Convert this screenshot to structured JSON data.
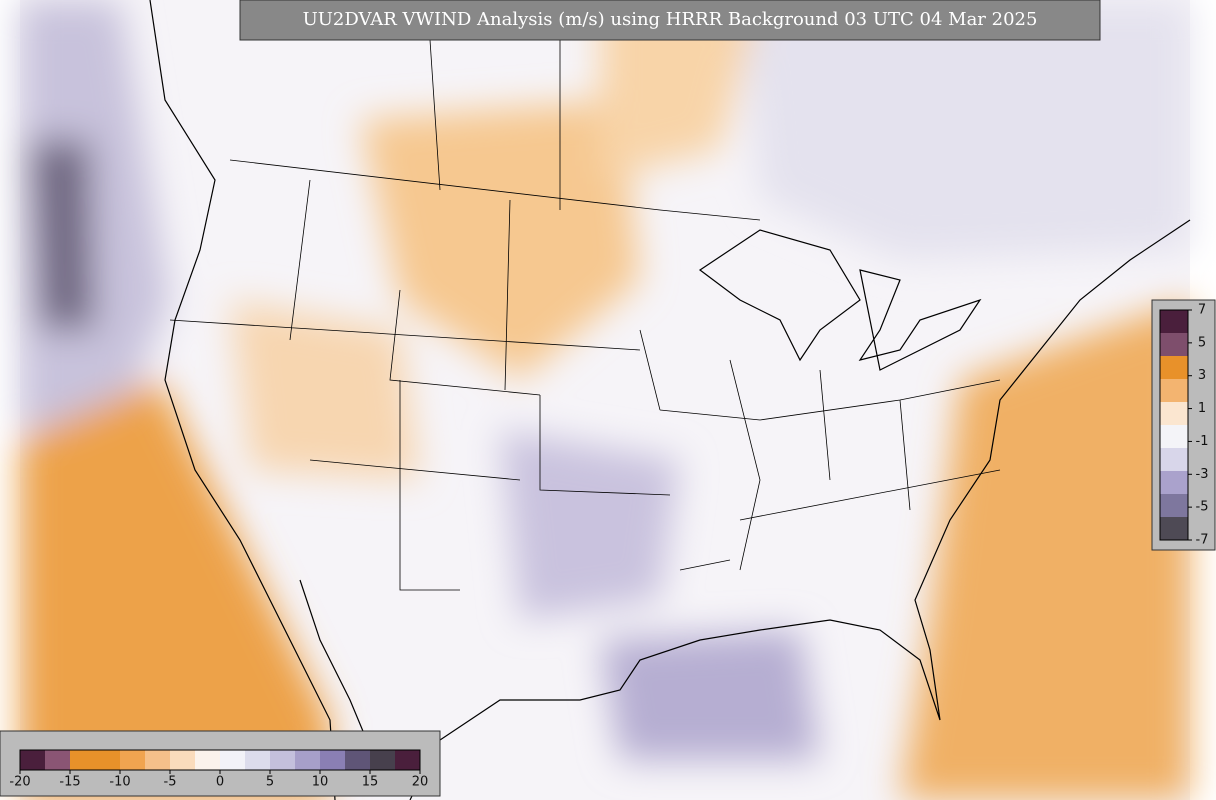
{
  "title": "UU2DVAR VWIND Analysis (m/s) using HRRR Background 03 UTC 04 Mar 2025",
  "colorbars": [
    {
      "orientation": "horizontal",
      "range": [
        -20,
        20
      ],
      "ticks": [
        -20,
        -15,
        -10,
        -5,
        0,
        5,
        10,
        15,
        20
      ],
      "colors": [
        "#4a1f3c",
        "#8a5574",
        "#e8912a",
        "#e8912a",
        "#f0a450",
        "#f5c08a",
        "#fadcbc",
        "#fbf3ec",
        "#f2f2f8",
        "#dcdcec",
        "#c4c0dc",
        "#a79fc9",
        "#8a7fb4",
        "#5f5577",
        "#47404d",
        "#4a1f3c"
      ]
    },
    {
      "orientation": "vertical",
      "range": [
        -7,
        7
      ],
      "ticks": [
        7,
        5,
        3,
        1,
        -1,
        -3,
        -5,
        -7
      ],
      "colors": [
        "#4a1f3c",
        "#7e4e6c",
        "#e8912a",
        "#f3b470",
        "#fbe6d0",
        "#f4f4f8",
        "#d8d6ea",
        "#aaa2cc",
        "#7e779e",
        "#4e4a55"
      ]
    }
  ]
}
